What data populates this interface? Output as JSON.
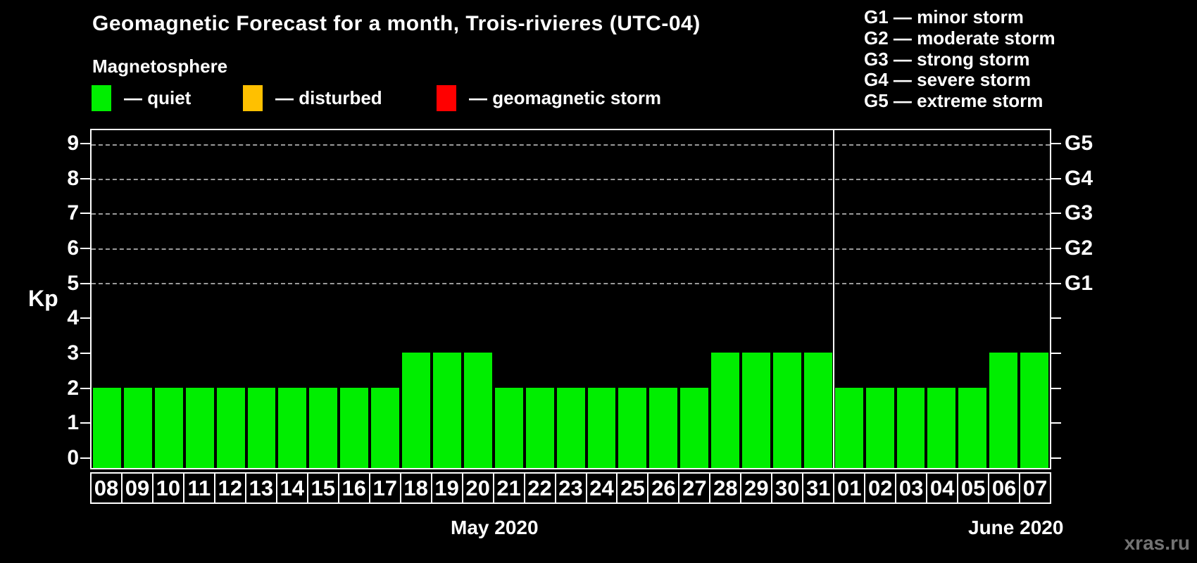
{
  "title": "Geomagnetic Forecast for a month, Trois-rivieres (UTC-04)",
  "subtitle": "Magnetosphere",
  "legend": [
    {
      "name": "quiet",
      "label": "— quiet",
      "color": "#00ee00"
    },
    {
      "name": "disturbed",
      "label": "— disturbed",
      "color": "#ffc000"
    },
    {
      "name": "storm",
      "label": "— geomagnetic storm",
      "color": "#ff0000"
    }
  ],
  "g_legend": [
    "G1 — minor storm",
    "G2 — moderate storm",
    "G3 — strong storm",
    "G4 — severe storm",
    "G5 — extreme storm"
  ],
  "watermark": "xras.ru",
  "chart_data": {
    "type": "bar",
    "title": "Geomagnetic Forecast for a month, Trois-rivieres (UTC-04)",
    "ylabel": "Kp",
    "ylim": [
      0,
      9
    ],
    "yticks": [
      0,
      1,
      2,
      3,
      4,
      5,
      6,
      7,
      8,
      9
    ],
    "grid_kp": [
      5,
      6,
      7,
      8,
      9
    ],
    "g_scale": [
      {
        "kp": 5,
        "label": "G1"
      },
      {
        "kp": 6,
        "label": "G2"
      },
      {
        "kp": 7,
        "label": "G3"
      },
      {
        "kp": 8,
        "label": "G4"
      },
      {
        "kp": 9,
        "label": "G5"
      }
    ],
    "legend_position": "top",
    "grid": "dashed horizontal at G-storm levels only",
    "months": [
      {
        "label": "May 2020",
        "days": [
          "08",
          "09",
          "10",
          "11",
          "12",
          "13",
          "14",
          "15",
          "16",
          "17",
          "18",
          "19",
          "20",
          "21",
          "22",
          "23",
          "24",
          "25",
          "26",
          "27",
          "28",
          "29",
          "30",
          "31"
        ],
        "values": [
          2,
          2,
          2,
          2,
          2,
          2,
          2,
          2,
          2,
          2,
          3,
          3,
          3,
          2,
          2,
          2,
          2,
          2,
          2,
          2,
          3,
          3,
          3,
          3
        ]
      },
      {
        "label": "June 2020",
        "days": [
          "01",
          "02",
          "03",
          "04",
          "05",
          "06",
          "07"
        ],
        "values": [
          2,
          2,
          2,
          2,
          2,
          3,
          3
        ]
      }
    ]
  }
}
